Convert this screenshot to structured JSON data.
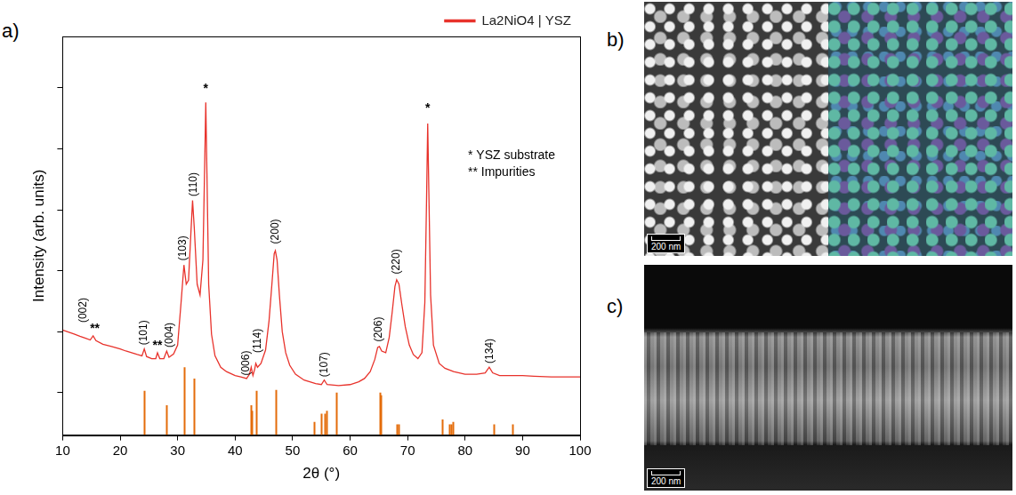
{
  "chart_data": {
    "type": "line",
    "x_label": "2θ (°)",
    "y_label": "Intensity (arb. units)",
    "log": "y",
    "grid": false,
    "legend": "top right",
    "tick_labels": "x",
    "xlim": [
      10,
      100
    ],
    "xticks": [
      10,
      20,
      30,
      40,
      50,
      60,
      70,
      80,
      90,
      100
    ],
    "ylim": [
      0.2,
      700000
    ],
    "yticks": [
      1,
      10,
      100,
      1000,
      10000,
      100000
    ],
    "series": [
      {
        "name": "La2NiO4 | YSZ",
        "color": "#e8322b",
        "type": "line",
        "x": [
          10,
          11,
          12,
          13,
          14,
          14.8,
          15.3,
          15.8,
          17,
          18.5,
          20,
          21,
          22,
          23,
          23.8,
          24.2,
          24.6,
          25.5,
          26.2,
          26.5,
          26.9,
          27.6,
          28.1,
          28.5,
          29.3,
          30,
          30.6,
          31.1,
          31.5,
          31.9,
          32.3,
          32.6,
          32.9,
          33.4,
          33.9,
          34.4,
          34.7,
          34.9,
          35.1,
          35.4,
          35.9,
          36.5,
          37.5,
          38.5,
          40,
          41,
          42,
          42.5,
          42.8,
          43.1,
          43.4,
          43.6,
          43.9,
          44.5,
          45.3,
          45.9,
          46.4,
          46.8,
          47.0,
          47.3,
          47.7,
          48.2,
          48.8,
          49.5,
          50.5,
          52,
          54,
          55,
          55.5,
          56,
          58,
          60,
          61.5,
          62.5,
          63.5,
          64.3,
          64.8,
          65.1,
          65.5,
          66.2,
          66.8,
          67.3,
          67.8,
          68.1,
          68.5,
          69,
          69.6,
          70.3,
          71,
          71.8,
          72.5,
          73,
          73.3,
          73.5,
          73.7,
          74,
          74.5,
          75.5,
          76.5,
          78,
          80,
          82,
          83.5,
          84.2,
          84.8,
          86,
          88,
          90,
          92,
          95,
          98,
          100
        ],
        "values": [
          10.6,
          9.8,
          9.1,
          8.4,
          7.8,
          7.3,
          8.5,
          7.1,
          6.2,
          5.7,
          5.2,
          4.8,
          4.5,
          4.2,
          4.0,
          5.2,
          3.9,
          3.6,
          3.6,
          4.5,
          3.6,
          3.6,
          4.8,
          3.8,
          4.3,
          6,
          30,
          124,
          60,
          70,
          400,
          1420,
          500,
          60,
          40,
          150,
          5000,
          58000,
          4000,
          60,
          9,
          4.0,
          2.6,
          2.2,
          1.9,
          1.8,
          1.7,
          2.0,
          2.6,
          1.9,
          2.4,
          3.0,
          2.6,
          3.0,
          5,
          15,
          60,
          190,
          213,
          150,
          40,
          10,
          4.5,
          2.8,
          2.0,
          1.6,
          1.4,
          1.35,
          1.6,
          1.35,
          1.3,
          1.35,
          1.5,
          1.7,
          2.2,
          3.5,
          5.5,
          5.7,
          4.8,
          4.5,
          8,
          20,
          55,
          71,
          60,
          28,
          12,
          6,
          4.2,
          3.6,
          4.5,
          30,
          1500,
          26000,
          2000,
          40,
          6,
          3.0,
          2.5,
          2.2,
          2.0,
          2.0,
          2.1,
          2.6,
          2.1,
          1.9,
          1.9,
          1.9,
          1.85,
          1.8,
          1.8,
          1.8
        ]
      },
      {
        "color": "#e46c0a",
        "type": "bar",
        "x": [
          24.1,
          28.1,
          31.2,
          32.8,
          42.7,
          42.9,
          43.6,
          47.0,
          53.8,
          55.0,
          55.6,
          55.9,
          57.6,
          65.2,
          65.4,
          68.1,
          68.4,
          76.0,
          77.2,
          77.6,
          77.9,
          85.0,
          88.2
        ],
        "values": [
          1.07,
          0.62,
          2.6,
          1.7,
          0.62,
          0.5,
          1.07,
          1.1,
          0.33,
          0.45,
          0.45,
          0.5,
          1.0,
          1.0,
          0.9,
          0.3,
          0.3,
          0.36,
          0.3,
          0.3,
          0.33,
          0.3,
          0.3
        ]
      }
    ],
    "peak_labels": [
      {
        "text": "(002)",
        "x": 13.6,
        "y": 14
      },
      {
        "text": "(101)",
        "x": 24.2,
        "y": 6.0
      },
      {
        "text": "(004)",
        "x": 28.6,
        "y": 5.5
      },
      {
        "text": "(103)",
        "x": 31.0,
        "y": 146
      },
      {
        "text": "(110)",
        "x": 32.8,
        "y": 1650
      },
      {
        "text": "(006)",
        "x": 41.9,
        "y": 1.9
      },
      {
        "text": "(114)",
        "x": 44.0,
        "y": 4.5
      },
      {
        "text": "(200)",
        "x": 47.0,
        "y": 275
      },
      {
        "text": "(107)",
        "x": 55.5,
        "y": 1.8
      },
      {
        "text": "(206)",
        "x": 65.0,
        "y": 6.8
      },
      {
        "text": "(220)",
        "x": 68.1,
        "y": 88
      },
      {
        "text": "(134)",
        "x": 84.3,
        "y": 3.0
      }
    ],
    "annotations": [
      {
        "text": "**",
        "x": 15.6,
        "y": 9.7
      },
      {
        "text": "**",
        "x": 26.5,
        "y": 5.2
      },
      {
        "text": "*",
        "x": 34.9,
        "y": 85000
      },
      {
        "text": "*",
        "x": 73.5,
        "y": 40000
      }
    ],
    "notes": [
      {
        "text": "* YSZ substrate",
        "x": 80.5,
        "y": 6800
      },
      {
        "text": "** Impurities",
        "x": 80.5,
        "y": 3600
      }
    ]
  },
  "panels": [
    {
      "label": "a)"
    },
    {
      "label": "b)",
      "scale_bar": "200 nm"
    },
    {
      "label": "c)",
      "scale_bar": "200 nm"
    }
  ]
}
